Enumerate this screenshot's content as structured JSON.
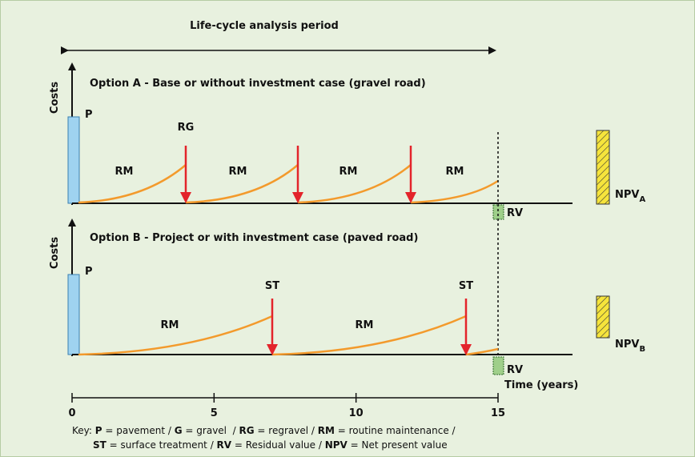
{
  "period_label": "Life-cycle analysis period",
  "axis_label": "Costs",
  "option_a": {
    "title": "Option A - Base or without investment case (gravel road)",
    "p_label": "P",
    "event_label": "RG",
    "rm_label": "RM",
    "rv_label": "RV",
    "npv": {
      "main": "NPV",
      "sub": "A"
    }
  },
  "option_b": {
    "title": "Option B - Project or with investment case (paved road)",
    "p_label": "P",
    "event_labels": [
      "ST",
      "ST"
    ],
    "rm_label": "RM",
    "rv_label": "RV",
    "npv": {
      "main": "NPV",
      "sub": "B"
    }
  },
  "time_axis": {
    "label": "Time (years)",
    "ticks": [
      "0",
      "5",
      "10",
      "15"
    ]
  },
  "key": [
    [
      {
        "text": "Key: "
      },
      {
        "text": "P",
        "bold": true
      },
      {
        "text": " = pavement / "
      },
      {
        "text": "G",
        "bold": true
      },
      {
        "text": " = gravel  / "
      },
      {
        "text": "RG",
        "bold": true
      },
      {
        "text": " = regravel / "
      },
      {
        "text": "RM",
        "bold": true
      },
      {
        "text": " = routine maintenance /"
      }
    ],
    [
      {
        "text": "ST",
        "bold": true
      },
      {
        "text": " = surface treatment / "
      },
      {
        "text": "RV",
        "bold": true
      },
      {
        "text": " = Residual value / "
      },
      {
        "text": "NPV",
        "bold": true
      },
      {
        "text": " = Net present value"
      }
    ]
  ]
}
